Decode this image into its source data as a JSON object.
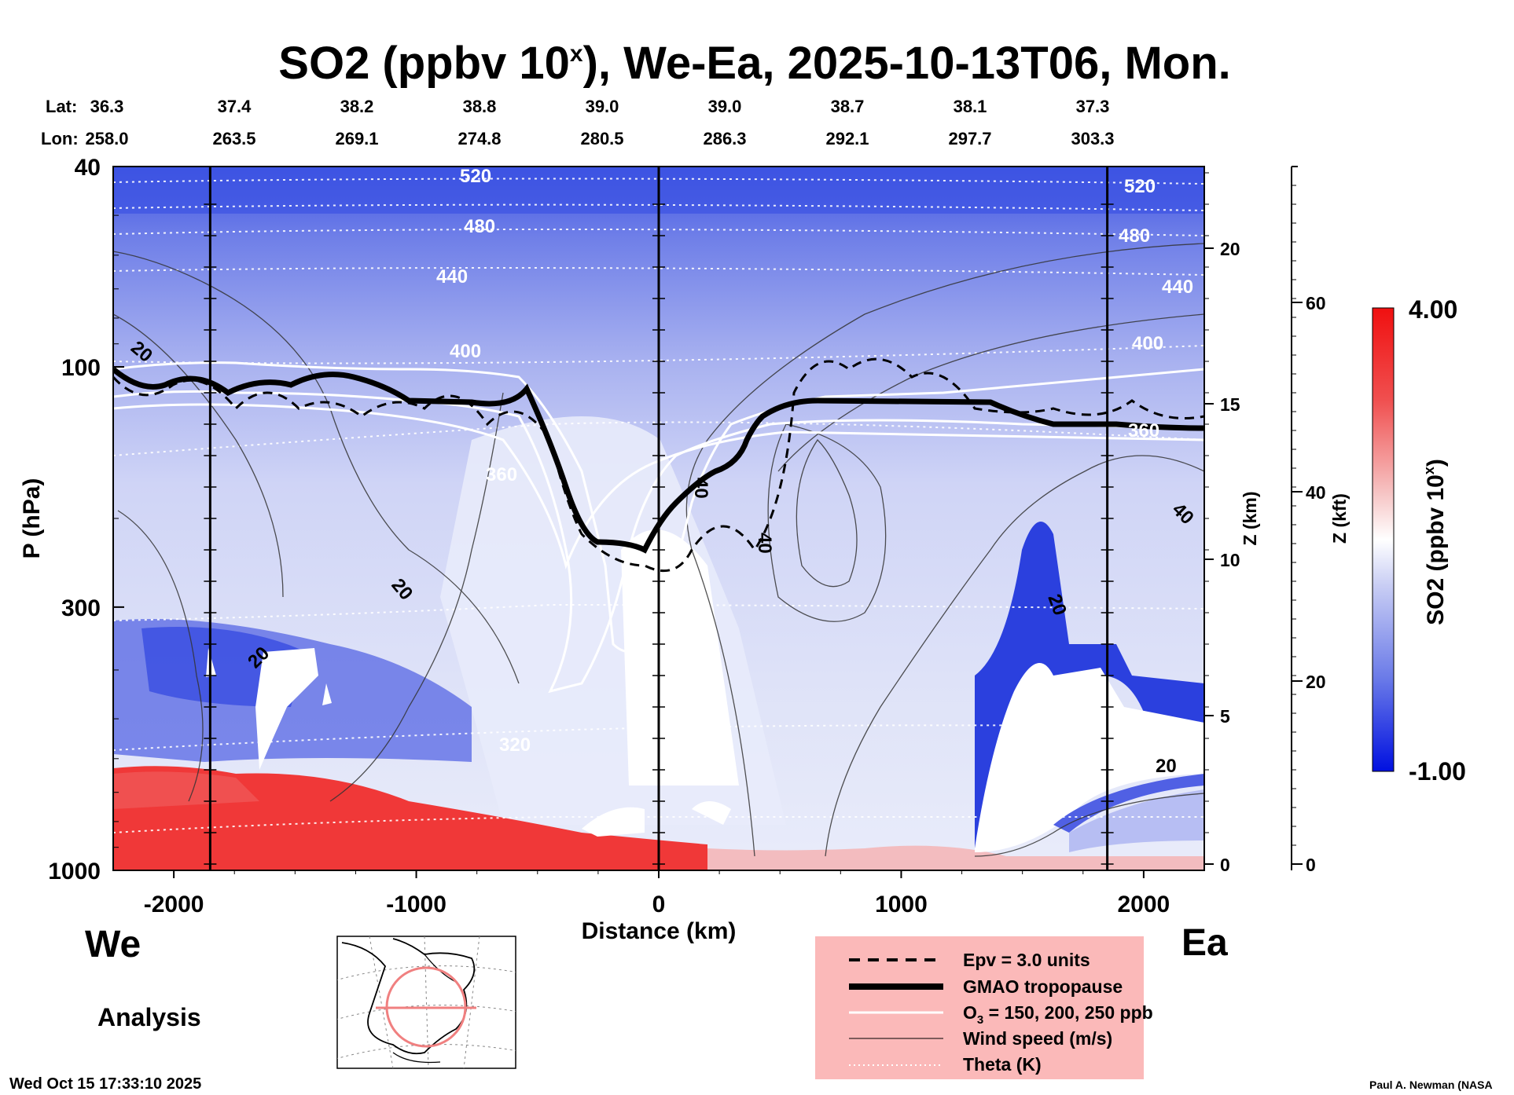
{
  "chart_data": {
    "type": "heatmap",
    "title": "SO2 (ppbv 10",
    "title_superscript": "x",
    "title_suffix": "), We-Ea, 2025-10-13T06, Mon.",
    "lat_label": "Lat:",
    "lon_label": "Lon:",
    "lat": [
      "36.3",
      "37.4",
      "38.2",
      "38.8",
      "39.0",
      "39.0",
      "38.7",
      "38.1",
      "37.3"
    ],
    "lon": [
      "258.0",
      "263.5",
      "269.1",
      "274.8",
      "280.5",
      "286.3",
      "292.1",
      "297.7",
      "303.3"
    ],
    "xlabel": "Distance (km)",
    "xlim": [
      -2250,
      2250
    ],
    "xticks": [
      "-2000",
      "-1000",
      "0",
      "1000",
      "2000"
    ],
    "x_tick_values": [
      -2000,
      -1000,
      0,
      1000,
      2000
    ],
    "ylabel": "P (hPa)",
    "yticks": [
      "40",
      "100",
      "300",
      "1000"
    ],
    "y_tick_values": [
      40,
      100,
      300,
      1000
    ],
    "ylim": [
      1000,
      40
    ],
    "z_km_label": "Z (km)",
    "z_km_ticks": [
      "0",
      "5",
      "10",
      "15",
      "20"
    ],
    "z_kft_label": "Z (kft)",
    "z_kft_ticks": [
      "0",
      "20",
      "40",
      "60"
    ],
    "vertical_markers_km": [
      -1850,
      0,
      1850
    ],
    "colorbar": {
      "label": "SO2 (ppbv 10",
      "label_superscript": "x",
      "label_suffix": ")",
      "max": "4.00",
      "min": "-1.00",
      "colors": [
        "#0010e0",
        "#6a7ae8",
        "#c8cdf4",
        "#ffffff",
        "#f6c4c4",
        "#f05050",
        "#f01010"
      ]
    },
    "theta_labels": [
      "520",
      "480",
      "440",
      "400",
      "360",
      "320",
      "520",
      "480",
      "440",
      "400",
      "360"
    ],
    "wind_labels": [
      "20",
      "20",
      "20",
      "40",
      "40",
      "20",
      "40",
      "20"
    ],
    "left_label": "We",
    "right_label": "Ea",
    "analysis_label": "Analysis",
    "legend": [
      {
        "style": "dashed",
        "label": "Epv = 3.0 units"
      },
      {
        "style": "thick",
        "label": "GMAO tropopause"
      },
      {
        "style": "white",
        "label": "O",
        "sub": "3",
        "label_suffix": " = 150, 200, 250 ppb"
      },
      {
        "style": "thin",
        "label": "Wind speed (m/s)"
      },
      {
        "style": "dotted",
        "label": "Theta (K)"
      }
    ],
    "colors": {
      "legend_bg": "#fbb9b9",
      "map_route": "#f08080"
    }
  },
  "footer": {
    "timestamp": "Wed Oct 15 17:33:10 2025",
    "credit": "Paul A. Newman (NASA"
  }
}
